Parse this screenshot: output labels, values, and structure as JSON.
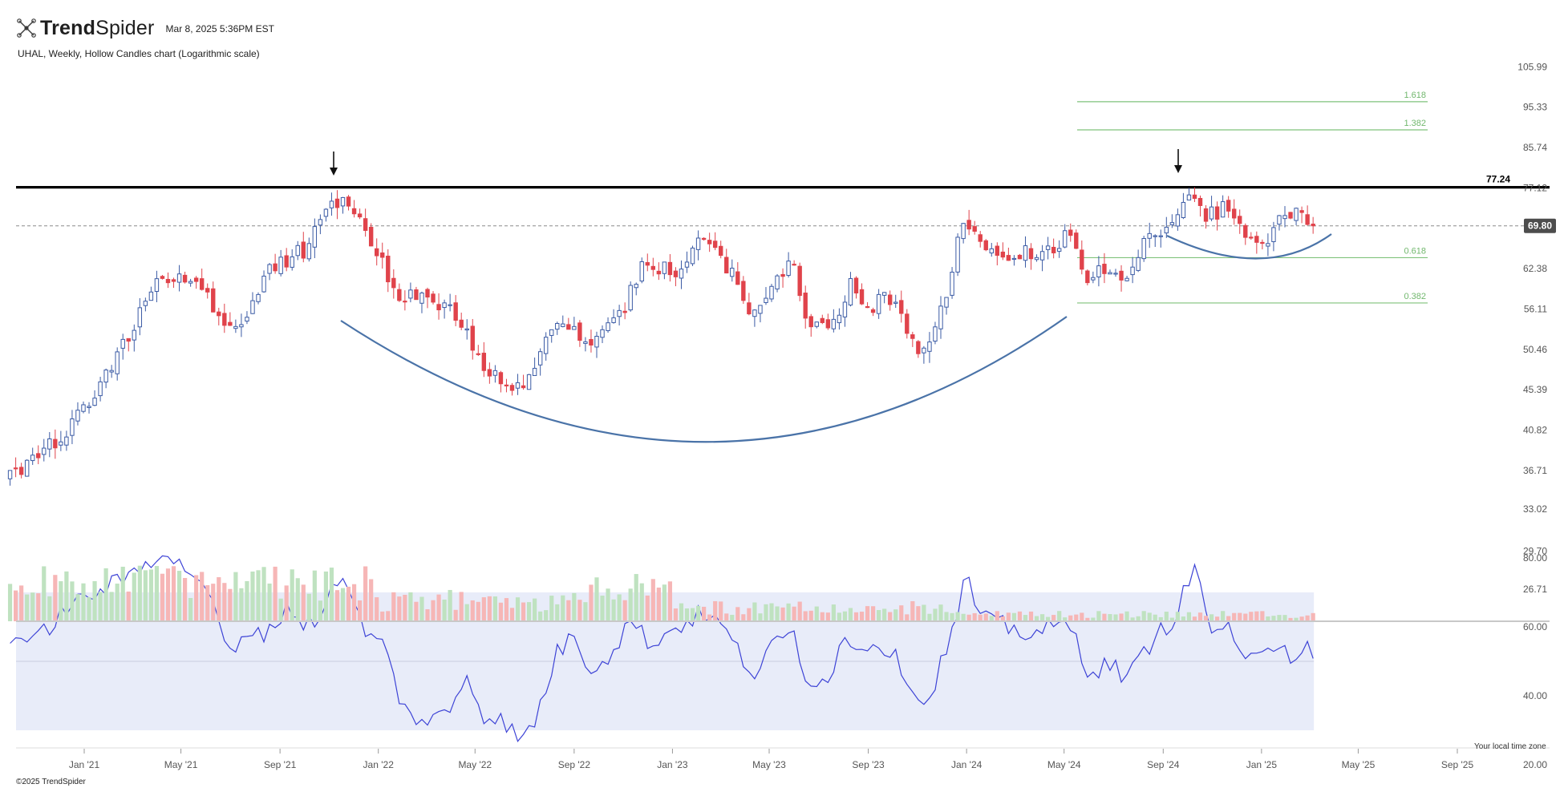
{
  "header": {
    "brand_prefix": "Trend",
    "brand_suffix": "Spider",
    "timestamp": "Mar 8, 2025 5:36PM EST",
    "chart_title": "UHAL, Weekly, Hollow Candles chart (Logarithmic scale)"
  },
  "footer": {
    "copyright": "©2025 TrendSpider",
    "timezone_note": "Your local time zone"
  },
  "colors": {
    "up": "#3b5ba5",
    "down": "#e0434b",
    "vol_up": "#bfe2c0",
    "vol_down": "#f6b6b6",
    "curve": "#4a73a8",
    "rsi_line": "#3d43d6",
    "rsi_band": "#e8ecf9",
    "fib": "#7fc27b",
    "resistance": "#000000",
    "last_price_tag": "#4d4d4d"
  },
  "chart_data": {
    "type": "candlestick",
    "symbol": "UHAL",
    "interval": "Weekly",
    "scale": "log",
    "x_ticks": [
      "Jan '21",
      "May '21",
      "Sep '21",
      "Jan '22",
      "May '22",
      "Sep '22",
      "Jan '23",
      "May '23",
      "Sep '23",
      "Jan '24",
      "May '24",
      "Sep '24",
      "Jan '25",
      "May '25",
      "Sep '25"
    ],
    "price_ticks": [
      "105.99",
      "95.33",
      "85.74",
      "77.12",
      "62.38",
      "56.11",
      "50.46",
      "45.39",
      "40.82",
      "36.71",
      "33.02",
      "29.70",
      "26.71"
    ],
    "resistance": {
      "value": 77.24,
      "label": "77.24"
    },
    "last_price": {
      "value": 69.8,
      "label": "69.80"
    },
    "fib_levels": [
      {
        "label": "1.618",
        "value": 96.7
      },
      {
        "label": "1.382",
        "value": 89.8
      },
      {
        "label": "0.618",
        "value": 64.2
      },
      {
        "label": "0.382",
        "value": 57.0
      }
    ],
    "close_path": [
      {
        "date": "2020-10-01",
        "close": 36.0
      },
      {
        "date": "2020-12-01",
        "close": 40.0
      },
      {
        "date": "2021-01-15",
        "close": 44.5
      },
      {
        "date": "2021-03-01",
        "close": 53.0
      },
      {
        "date": "2021-04-01",
        "close": 61.0
      },
      {
        "date": "2021-05-10",
        "close": 61.5
      },
      {
        "date": "2021-06-20",
        "close": 55.0
      },
      {
        "date": "2021-07-15",
        "close": 53.5
      },
      {
        "date": "2021-08-20",
        "close": 62.0
      },
      {
        "date": "2021-10-05",
        "close": 66.0
      },
      {
        "date": "2021-11-05",
        "close": 75.5
      },
      {
        "date": "2021-12-15",
        "close": 70.0
      },
      {
        "date": "2022-01-20",
        "close": 59.0
      },
      {
        "date": "2022-02-15",
        "close": 57.5
      },
      {
        "date": "2022-04-01",
        "close": 56.5
      },
      {
        "date": "2022-05-01",
        "close": 50.0
      },
      {
        "date": "2022-06-10",
        "close": 45.0
      },
      {
        "date": "2022-07-10",
        "close": 47.5
      },
      {
        "date": "2022-08-05",
        "close": 54.5
      },
      {
        "date": "2022-09-01",
        "close": 53.5
      },
      {
        "date": "2022-09-25",
        "close": 50.5
      },
      {
        "date": "2022-11-05",
        "close": 57.0
      },
      {
        "date": "2022-11-25",
        "close": 64.0
      },
      {
        "date": "2023-01-10",
        "close": 61.0
      },
      {
        "date": "2023-02-01",
        "close": 68.5
      },
      {
        "date": "2023-03-15",
        "close": 61.5
      },
      {
        "date": "2023-04-10",
        "close": 55.0
      },
      {
        "date": "2023-05-10",
        "close": 61.5
      },
      {
        "date": "2023-06-01",
        "close": 63.0
      },
      {
        "date": "2023-06-20",
        "close": 53.0
      },
      {
        "date": "2023-07-20",
        "close": 53.5
      },
      {
        "date": "2023-08-10",
        "close": 60.0
      },
      {
        "date": "2023-09-01",
        "close": 56.5
      },
      {
        "date": "2023-09-25",
        "close": 58.0
      },
      {
        "date": "2023-10-20",
        "close": 53.0
      },
      {
        "date": "2023-11-05",
        "close": 49.5
      },
      {
        "date": "2023-12-01",
        "close": 56.0
      },
      {
        "date": "2023-12-28",
        "close": 70.5
      },
      {
        "date": "2024-01-20",
        "close": 65.5
      },
      {
        "date": "2024-03-01",
        "close": 64.5
      },
      {
        "date": "2024-04-20",
        "close": 66.0
      },
      {
        "date": "2024-05-05",
        "close": 68.0
      },
      {
        "date": "2024-05-25",
        "close": 61.5
      },
      {
        "date": "2024-06-25",
        "close": 61.5
      },
      {
        "date": "2024-07-15",
        "close": 61.0
      },
      {
        "date": "2024-08-10",
        "close": 67.5
      },
      {
        "date": "2024-09-01",
        "close": 69.5
      },
      {
        "date": "2024-10-01",
        "close": 76.0
      },
      {
        "date": "2024-10-25",
        "close": 71.5
      },
      {
        "date": "2024-11-20",
        "close": 73.5
      },
      {
        "date": "2024-12-10",
        "close": 69.0
      },
      {
        "date": "2025-01-05",
        "close": 66.0
      },
      {
        "date": "2025-01-25",
        "close": 71.5
      },
      {
        "date": "2025-02-15",
        "close": 73.0
      },
      {
        "date": "2025-03-07",
        "close": 69.8
      }
    ],
    "rsi": {
      "ticks": [
        "80.00",
        "60.00",
        "40.00",
        "20.00"
      ],
      "band": [
        30,
        70
      ],
      "midline": 50,
      "points": [
        {
          "date": "2020-10-01",
          "value": 58
        },
        {
          "date": "2020-11-01",
          "value": 55
        },
        {
          "date": "2020-12-01",
          "value": 64
        },
        {
          "date": "2021-01-15",
          "value": 70
        },
        {
          "date": "2021-02-15",
          "value": 73
        },
        {
          "date": "2021-03-10",
          "value": 77
        },
        {
          "date": "2021-04-10",
          "value": 83
        },
        {
          "date": "2021-04-25",
          "value": 78
        },
        {
          "date": "2021-05-25",
          "value": 75
        },
        {
          "date": "2021-06-15",
          "value": 62
        },
        {
          "date": "2021-07-05",
          "value": 50
        },
        {
          "date": "2021-07-25",
          "value": 60
        },
        {
          "date": "2021-08-20",
          "value": 58
        },
        {
          "date": "2021-09-10",
          "value": 67
        },
        {
          "date": "2021-10-01",
          "value": 60
        },
        {
          "date": "2021-10-20",
          "value": 63
        },
        {
          "date": "2021-11-10",
          "value": 75
        },
        {
          "date": "2021-12-01",
          "value": 67
        },
        {
          "date": "2021-12-20",
          "value": 57
        },
        {
          "date": "2022-01-10",
          "value": 54
        },
        {
          "date": "2022-02-01",
          "value": 36
        },
        {
          "date": "2022-03-05",
          "value": 32
        },
        {
          "date": "2022-04-01",
          "value": 36
        },
        {
          "date": "2022-04-20",
          "value": 47
        },
        {
          "date": "2022-05-10",
          "value": 35
        },
        {
          "date": "2022-06-10",
          "value": 32
        },
        {
          "date": "2022-06-25",
          "value": 26
        },
        {
          "date": "2022-07-15",
          "value": 33
        },
        {
          "date": "2022-08-10",
          "value": 52
        },
        {
          "date": "2022-09-01",
          "value": 58
        },
        {
          "date": "2022-09-20",
          "value": 48
        },
        {
          "date": "2022-10-15",
          "value": 52
        },
        {
          "date": "2022-11-10",
          "value": 62
        },
        {
          "date": "2022-12-05",
          "value": 55
        },
        {
          "date": "2022-12-25",
          "value": 58
        },
        {
          "date": "2023-01-20",
          "value": 62
        },
        {
          "date": "2023-02-10",
          "value": 64
        },
        {
          "date": "2023-03-05",
          "value": 60
        },
        {
          "date": "2023-03-25",
          "value": 52
        },
        {
          "date": "2023-04-15",
          "value": 46
        },
        {
          "date": "2023-05-10",
          "value": 56
        },
        {
          "date": "2023-06-01",
          "value": 58
        },
        {
          "date": "2023-06-15",
          "value": 46
        },
        {
          "date": "2023-07-10",
          "value": 44
        },
        {
          "date": "2023-08-01",
          "value": 56
        },
        {
          "date": "2023-08-25",
          "value": 55
        },
        {
          "date": "2023-09-20",
          "value": 55
        },
        {
          "date": "2023-10-20",
          "value": 46
        },
        {
          "date": "2023-11-10",
          "value": 36
        },
        {
          "date": "2023-12-01",
          "value": 50
        },
        {
          "date": "2023-12-20",
          "value": 62
        },
        {
          "date": "2023-12-30",
          "value": 75
        },
        {
          "date": "2024-01-20",
          "value": 62
        },
        {
          "date": "2024-02-20",
          "value": 60
        },
        {
          "date": "2024-03-20",
          "value": 58
        },
        {
          "date": "2024-04-20",
          "value": 60
        },
        {
          "date": "2024-05-10",
          "value": 60
        },
        {
          "date": "2024-06-01",
          "value": 47
        },
        {
          "date": "2024-06-30",
          "value": 49
        },
        {
          "date": "2024-07-20",
          "value": 45
        },
        {
          "date": "2024-08-15",
          "value": 55
        },
        {
          "date": "2024-09-15",
          "value": 63
        },
        {
          "date": "2024-10-10",
          "value": 77
        },
        {
          "date": "2024-10-30",
          "value": 60
        },
        {
          "date": "2024-11-20",
          "value": 59
        },
        {
          "date": "2024-12-10",
          "value": 48
        },
        {
          "date": "2024-12-30",
          "value": 55
        },
        {
          "date": "2025-01-25",
          "value": 56
        },
        {
          "date": "2025-02-10",
          "value": 50
        },
        {
          "date": "2025-02-25",
          "value": 57
        },
        {
          "date": "2025-03-07",
          "value": 48
        }
      ]
    }
  }
}
